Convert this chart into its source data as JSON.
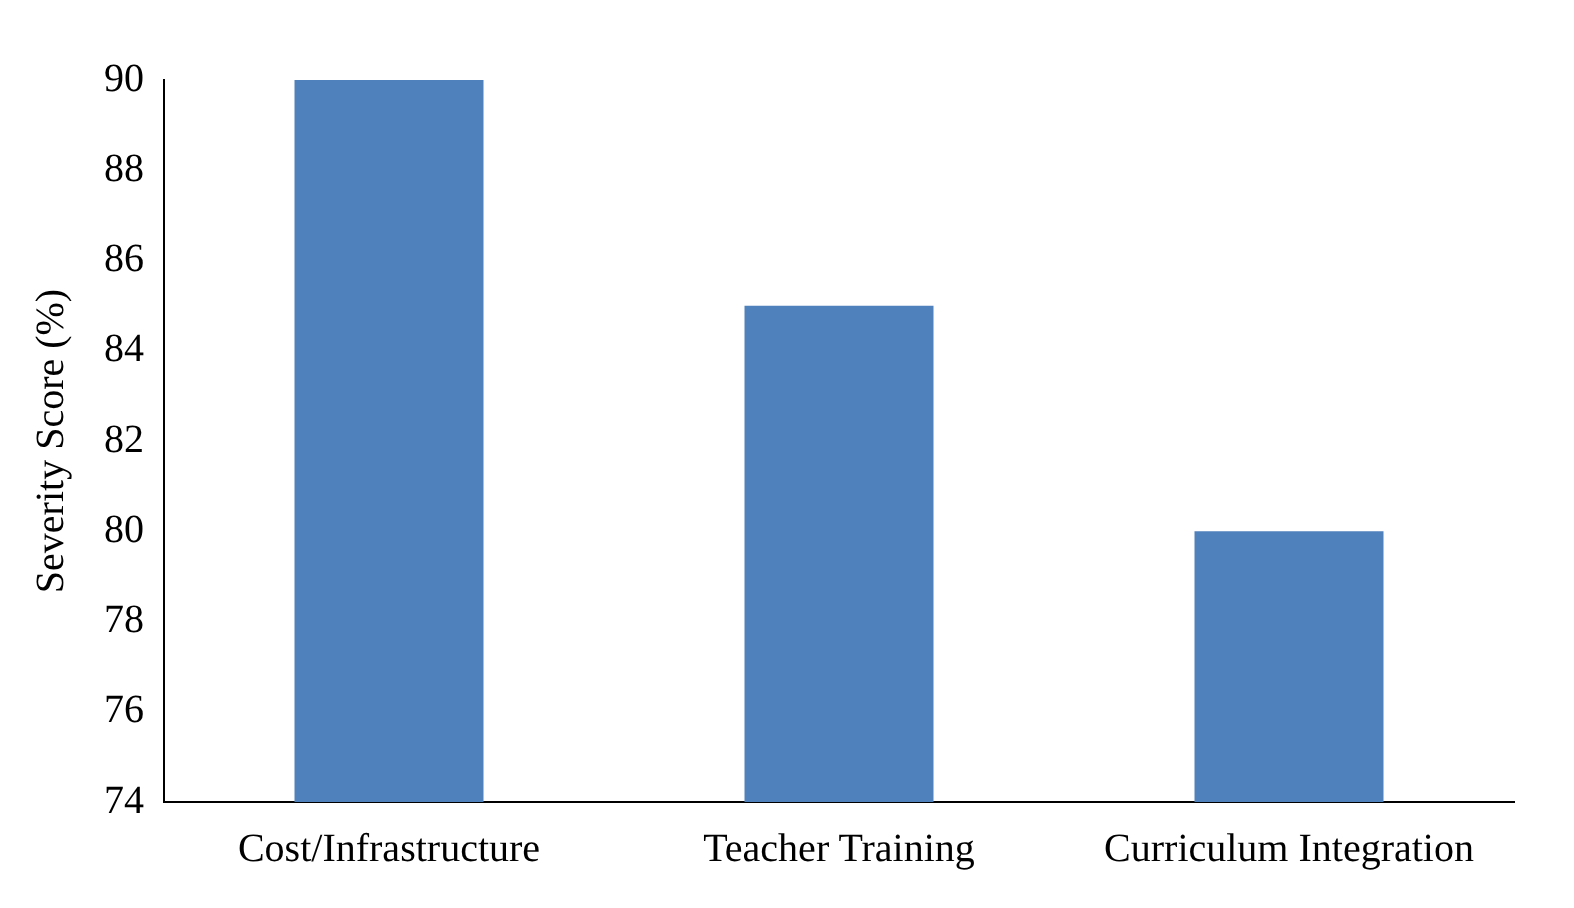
{
  "chart_data": {
    "type": "bar",
    "ylabel": "Severity Score (%)",
    "categories": [
      "Cost/Infrastructure",
      "Teacher Training",
      "Curriculum Integration"
    ],
    "values": [
      90,
      85,
      80
    ],
    "color": "#4f81bd",
    "ylim": [
      74,
      90
    ],
    "yticks": [
      74,
      76,
      78,
      80,
      82,
      84,
      86,
      88,
      90
    ],
    "grid": false
  }
}
